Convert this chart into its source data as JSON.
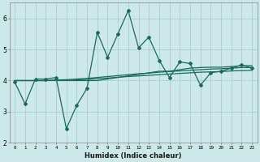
{
  "xlabel": "Humidex (Indice chaleur)",
  "x": [
    0,
    1,
    2,
    3,
    4,
    5,
    6,
    7,
    8,
    9,
    10,
    11,
    12,
    13,
    14,
    15,
    16,
    17,
    18,
    19,
    20,
    21,
    22,
    23
  ],
  "y_main": [
    3.95,
    3.25,
    4.05,
    4.05,
    4.1,
    2.45,
    3.2,
    3.75,
    5.55,
    4.75,
    5.5,
    6.25,
    5.05,
    5.4,
    4.65,
    4.1,
    4.6,
    4.55,
    3.85,
    4.25,
    4.3,
    4.4,
    4.5,
    4.4
  ],
  "y_avg1": [
    4.0,
    4.0,
    4.0,
    4.0,
    4.0,
    4.0,
    4.0,
    4.0,
    4.0,
    4.05,
    4.1,
    4.15,
    4.2,
    4.25,
    4.3,
    4.3,
    4.35,
    4.4,
    4.42,
    4.43,
    4.43,
    4.45,
    4.48,
    4.48
  ],
  "y_avg2": [
    4.0,
    4.0,
    4.0,
    4.0,
    4.02,
    4.03,
    4.05,
    4.07,
    4.1,
    4.13,
    4.16,
    4.19,
    4.22,
    4.24,
    4.27,
    4.29,
    4.31,
    4.33,
    4.35,
    4.37,
    4.38,
    4.4,
    4.42,
    4.42
  ],
  "y_avg3": [
    4.0,
    4.0,
    4.0,
    4.0,
    4.01,
    4.01,
    4.02,
    4.04,
    4.06,
    4.08,
    4.11,
    4.13,
    4.15,
    4.17,
    4.19,
    4.21,
    4.23,
    4.25,
    4.27,
    4.28,
    4.29,
    4.31,
    4.32,
    4.33
  ],
  "line_color": "#1a6b5a",
  "bg_color": "#cce8e8",
  "grid_color": "#aacece",
  "ylim": [
    2.0,
    6.5
  ],
  "xlim": [
    -0.5,
    23.5
  ]
}
